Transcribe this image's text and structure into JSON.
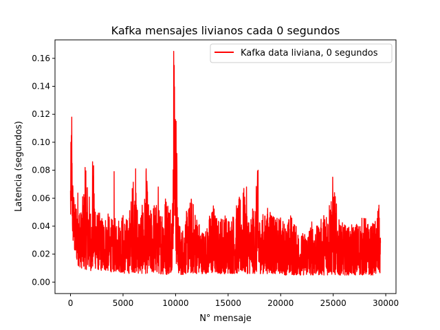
{
  "chart_data": {
    "type": "line",
    "title": "Kafka mensajes livianos cada 0 segundos",
    "xlabel": "N° mensaje",
    "ylabel": "Latencia (segundos)",
    "xlim": [
      -1475,
      30975
    ],
    "ylim": [
      -0.0082,
      0.1732
    ],
    "x_ticks": [
      0,
      5000,
      10000,
      15000,
      20000,
      25000,
      30000
    ],
    "x_tick_labels": [
      "0",
      "5000",
      "10000",
      "15000",
      "20000",
      "25000",
      "30000"
    ],
    "y_ticks": [
      0.0,
      0.02,
      0.04,
      0.06,
      0.08,
      0.1,
      0.12,
      0.14,
      0.16
    ],
    "y_tick_labels": [
      "0.00",
      "0.02",
      "0.04",
      "0.06",
      "0.08",
      "0.10",
      "0.12",
      "0.14",
      "0.16"
    ],
    "grid": false,
    "legend_position": "top-right",
    "series": [
      {
        "name": "Kafka data liviana, 0 segundos",
        "color": "#ff0000",
        "x_range": [
          0,
          29500
        ],
        "num_points": 29500,
        "envelope": {
          "x": [
            0,
            100,
            200,
            400,
            700,
            1000,
            1500,
            2000,
            2200,
            2500,
            3000,
            3500,
            4000,
            4500,
            5000,
            5500,
            6000,
            6500,
            7000,
            7200,
            7500,
            8000,
            8500,
            9000,
            9500,
            9700,
            9800,
            9850,
            9900,
            10000,
            10100,
            10300,
            10600,
            11000,
            11500,
            12000,
            12500,
            13000,
            13500,
            14000,
            14500,
            15000,
            15500,
            16000,
            16500,
            17000,
            17500,
            17800,
            18000,
            18500,
            19000,
            19500,
            20000,
            20500,
            21000,
            21500,
            22000,
            22500,
            23000,
            23500,
            24000,
            24500,
            25000,
            25500,
            26000,
            26500,
            27000,
            27500,
            28000,
            28500,
            29000,
            29300,
            29500
          ],
          "upper": [
            0.09,
            0.118,
            0.08,
            0.055,
            0.068,
            0.052,
            0.082,
            0.05,
            0.086,
            0.052,
            0.048,
            0.05,
            0.045,
            0.048,
            0.05,
            0.045,
            0.079,
            0.05,
            0.058,
            0.081,
            0.05,
            0.06,
            0.052,
            0.065,
            0.06,
            0.06,
            0.13,
            0.165,
            0.155,
            0.115,
            0.092,
            0.044,
            0.038,
            0.05,
            0.062,
            0.05,
            0.038,
            0.04,
            0.06,
            0.045,
            0.05,
            0.048,
            0.05,
            0.06,
            0.068,
            0.048,
            0.055,
            0.08,
            0.048,
            0.05,
            0.058,
            0.045,
            0.048,
            0.042,
            0.05,
            0.04,
            0.035,
            0.038,
            0.045,
            0.04,
            0.048,
            0.058,
            0.075,
            0.045,
            0.042,
            0.04,
            0.042,
            0.045,
            0.048,
            0.04,
            0.045,
            0.055,
            0.035
          ],
          "lower": [
            0.035,
            0.06,
            0.03,
            0.02,
            0.012,
            0.01,
            0.009,
            0.008,
            0.01,
            0.009,
            0.008,
            0.008,
            0.007,
            0.008,
            0.006,
            0.006,
            0.007,
            0.006,
            0.006,
            0.006,
            0.007,
            0.006,
            0.006,
            0.005,
            0.006,
            0.01,
            0.03,
            0.06,
            0.04,
            0.02,
            0.008,
            0.006,
            0.005,
            0.006,
            0.006,
            0.006,
            0.006,
            0.006,
            0.006,
            0.006,
            0.006,
            0.006,
            0.006,
            0.006,
            0.006,
            0.006,
            0.006,
            0.006,
            0.006,
            0.006,
            0.006,
            0.006,
            0.006,
            0.005,
            0.005,
            0.005,
            0.005,
            0.005,
            0.005,
            0.005,
            0.005,
            0.005,
            0.005,
            0.005,
            0.005,
            0.005,
            0.005,
            0.005,
            0.005,
            0.005,
            0.005,
            0.005,
            0.006
          ]
        },
        "spikes": [
          [
            120,
            0.118
          ],
          [
            1390,
            0.082
          ],
          [
            2100,
            0.086
          ],
          [
            4150,
            0.079
          ],
          [
            6200,
            0.081
          ],
          [
            7200,
            0.081
          ],
          [
            8350,
            0.068
          ],
          [
            9820,
            0.165
          ],
          [
            9870,
            0.155
          ],
          [
            10050,
            0.115
          ],
          [
            10120,
            0.092
          ],
          [
            16750,
            0.068
          ],
          [
            17850,
            0.08
          ],
          [
            24950,
            0.075
          ],
          [
            29350,
            0.055
          ]
        ]
      }
    ]
  }
}
